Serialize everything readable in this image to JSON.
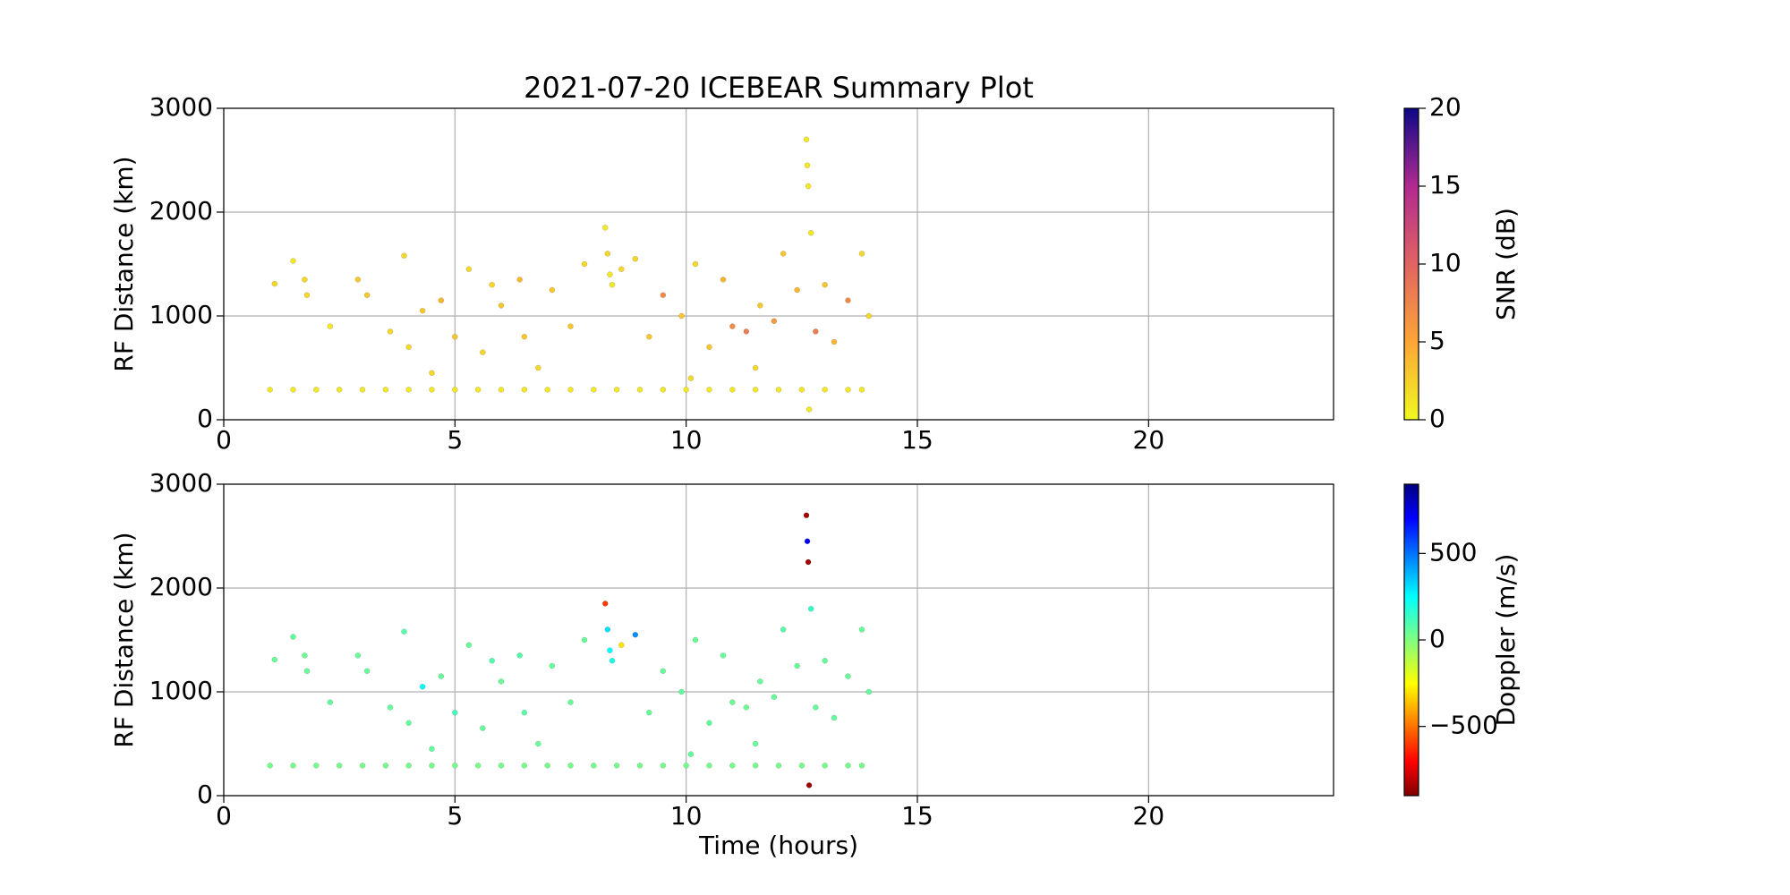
{
  "chart_data": [
    {
      "type": "scatter",
      "title": "2021-07-20 ICEBEAR Summary Plot",
      "ylabel": "RF Distance (km)",
      "xlim": [
        0,
        24
      ],
      "xticks": [
        0,
        5,
        10,
        15,
        20
      ],
      "ylim": [
        0,
        3000
      ],
      "yticks": [
        0,
        1000,
        2000,
        3000
      ],
      "grid": true,
      "colormap": "plasma_r",
      "clim": [
        0,
        20
      ],
      "cticks": [
        0,
        5,
        10,
        15,
        20
      ],
      "colorbar_label": "SNR (dB)",
      "x": [
        1.0,
        1.5,
        2.0,
        2.5,
        3.0,
        3.5,
        4.0,
        4.5,
        5.0,
        5.5,
        6.0,
        6.5,
        7.0,
        7.5,
        8.0,
        8.5,
        9.0,
        9.5,
        10.0,
        10.5,
        11.0,
        11.5,
        12.0,
        12.5,
        13.0,
        13.5,
        13.8,
        1.1,
        1.5,
        1.75,
        1.8,
        2.3,
        2.9,
        3.1,
        3.6,
        3.9,
        4.3,
        4.5,
        4.7,
        5.0,
        5.3,
        5.6,
        6.0,
        6.4,
        6.8,
        7.1,
        7.5,
        7.8,
        8.25,
        8.3,
        8.35,
        8.4,
        8.6,
        8.9,
        9.2,
        9.5,
        9.9,
        10.2,
        10.5,
        10.8,
        11.0,
        11.3,
        11.6,
        11.9,
        12.1,
        12.4,
        12.6,
        12.62,
        12.64,
        12.66,
        12.7,
        13.0,
        13.2,
        13.5,
        13.8,
        13.95,
        12.8,
        11.5,
        10.1,
        6.5,
        5.8,
        4.0
      ],
      "values": [
        290,
        290,
        290,
        290,
        290,
        290,
        290,
        290,
        290,
        290,
        290,
        290,
        290,
        290,
        290,
        290,
        290,
        290,
        290,
        290,
        290,
        290,
        290,
        290,
        290,
        290,
        290,
        1310,
        1530,
        1350,
        1200,
        900,
        1350,
        1200,
        850,
        1580,
        1050,
        450,
        1150,
        800,
        1450,
        650,
        1100,
        1350,
        500,
        1250,
        900,
        1500,
        1850,
        1600,
        1400,
        1300,
        1450,
        1550,
        800,
        1200,
        1000,
        1500,
        700,
        1350,
        900,
        850,
        1100,
        950,
        1600,
        1250,
        2700,
        2450,
        2250,
        100,
        1800,
        1300,
        750,
        1150,
        1600,
        1000,
        850,
        500,
        400,
        800,
        1300,
        700
      ],
      "color_values": [
        1,
        1,
        1,
        1,
        1,
        1,
        1,
        1,
        1,
        1,
        1,
        1,
        1,
        1,
        1,
        1,
        1,
        1,
        1,
        1,
        1,
        1,
        1,
        1,
        1,
        1,
        1,
        2,
        1,
        2,
        2,
        1,
        3,
        3,
        2,
        2,
        3,
        2,
        4,
        3,
        2,
        2,
        3,
        4,
        2,
        3,
        3,
        2,
        1,
        2,
        1,
        1,
        2,
        2,
        3,
        7,
        3,
        2,
        3,
        4,
        7,
        8,
        3,
        6,
        3,
        4,
        1,
        1,
        1,
        1,
        1,
        3,
        4,
        7,
        2,
        2,
        8,
        2,
        2,
        3,
        2,
        2
      ]
    },
    {
      "type": "scatter",
      "ylabel": "RF Distance (km)",
      "xlabel": "Time (hours)",
      "xlim": [
        0,
        24
      ],
      "xticks": [
        0,
        5,
        10,
        15,
        20
      ],
      "ylim": [
        0,
        3000
      ],
      "yticks": [
        0,
        1000,
        2000,
        3000
      ],
      "grid": true,
      "colormap": "jet_r",
      "clim": [
        -900,
        900
      ],
      "cticks": [
        {
          "value": -500,
          "label": "−500"
        },
        0,
        500
      ],
      "colorbar_label": "Doppler (m/s)",
      "x": [
        1.0,
        1.5,
        2.0,
        2.5,
        3.0,
        3.5,
        4.0,
        4.5,
        5.0,
        5.5,
        6.0,
        6.5,
        7.0,
        7.5,
        8.0,
        8.5,
        9.0,
        9.5,
        10.0,
        10.5,
        11.0,
        11.5,
        12.0,
        12.5,
        13.0,
        13.5,
        13.8,
        1.1,
        1.5,
        1.75,
        1.8,
        2.3,
        2.9,
        3.1,
        3.6,
        3.9,
        4.3,
        4.5,
        4.7,
        5.0,
        5.3,
        5.6,
        6.0,
        6.4,
        6.8,
        7.1,
        7.5,
        7.8,
        8.25,
        8.3,
        8.35,
        8.4,
        8.6,
        8.9,
        9.2,
        9.5,
        9.9,
        10.2,
        10.5,
        10.8,
        11.0,
        11.3,
        11.6,
        11.9,
        12.1,
        12.4,
        12.6,
        12.62,
        12.64,
        12.66,
        12.7,
        13.0,
        13.2,
        13.5,
        13.8,
        13.95,
        12.8,
        11.5,
        10.1,
        6.5,
        5.8,
        4.0
      ],
      "values": [
        290,
        290,
        290,
        290,
        290,
        290,
        290,
        290,
        290,
        290,
        290,
        290,
        290,
        290,
        290,
        290,
        290,
        290,
        290,
        290,
        290,
        290,
        290,
        290,
        290,
        290,
        290,
        1310,
        1530,
        1350,
        1200,
        900,
        1350,
        1200,
        850,
        1580,
        1050,
        450,
        1150,
        800,
        1450,
        650,
        1100,
        1350,
        500,
        1250,
        900,
        1500,
        1850,
        1600,
        1400,
        1300,
        1450,
        1550,
        800,
        1200,
        1000,
        1500,
        700,
        1350,
        900,
        850,
        1100,
        950,
        1600,
        1250,
        2700,
        2450,
        2250,
        100,
        1800,
        1300,
        750,
        1150,
        1600,
        1000,
        850,
        500,
        400,
        800,
        1300,
        700
      ],
      "color_values": [
        20,
        20,
        20,
        20,
        20,
        20,
        20,
        20,
        20,
        20,
        20,
        20,
        20,
        20,
        20,
        20,
        20,
        20,
        20,
        20,
        20,
        20,
        20,
        20,
        20,
        20,
        20,
        50,
        60,
        40,
        50,
        60,
        50,
        50,
        60,
        80,
        250,
        60,
        50,
        120,
        50,
        60,
        50,
        90,
        50,
        60,
        50,
        50,
        -600,
        300,
        250,
        200,
        -300,
        450,
        50,
        50,
        60,
        50,
        60,
        50,
        40,
        40,
        50,
        50,
        80,
        50,
        -850,
        700,
        -850,
        -850,
        150,
        50,
        60,
        50,
        50,
        60,
        50,
        50,
        60,
        80,
        90,
        50
      ]
    }
  ]
}
